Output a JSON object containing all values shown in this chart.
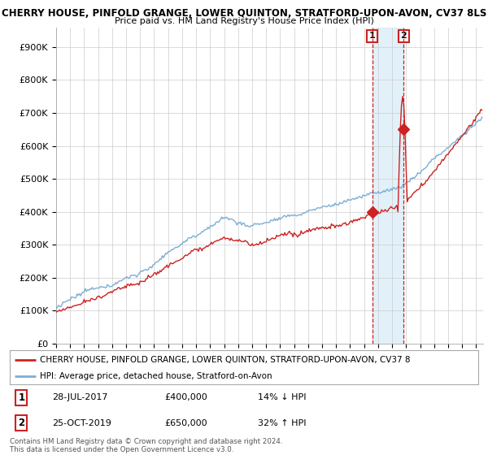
{
  "title": "CHERRY HOUSE, PINFOLD GRANGE, LOWER QUINTON, STRATFORD-UPON-AVON, CV37 8LS",
  "subtitle": "Price paid vs. HM Land Registry's House Price Index (HPI)",
  "ylabel_ticks": [
    "£0",
    "£100K",
    "£200K",
    "£300K",
    "£400K",
    "£500K",
    "£600K",
    "£700K",
    "£800K",
    "£900K"
  ],
  "ytick_vals": [
    0,
    100000,
    200000,
    300000,
    400000,
    500000,
    600000,
    700000,
    800000,
    900000
  ],
  "ylim": [
    0,
    960000
  ],
  "xlim_start": 1995.3,
  "xlim_end": 2025.5,
  "hpi_color": "#7daed4",
  "price_color": "#cc2222",
  "marker_color": "#cc2222",
  "shade_color": "#d0e8f5",
  "sale1_year": 2017.57,
  "sale1_price": 400000,
  "sale2_year": 2019.82,
  "sale2_price": 650000,
  "sale1_label": "1",
  "sale2_label": "2",
  "legend_label1": "CHERRY HOUSE, PINFOLD GRANGE, LOWER QUINTON, STRATFORD-UPON-AVON, CV37 8",
  "legend_label2": "HPI: Average price, detached house, Stratford-on-Avon",
  "table_row1": [
    "1",
    "28-JUL-2017",
    "£400,000",
    "14% ↓ HPI"
  ],
  "table_row2": [
    "2",
    "25-OCT-2019",
    "£650,000",
    "32% ↑ HPI"
  ],
  "footer": "Contains HM Land Registry data © Crown copyright and database right 2024.\nThis data is licensed under the Open Government Licence v3.0.",
  "bg_color": "#ffffff",
  "grid_color": "#cccccc",
  "hpi_linewidth": 1.0,
  "price_linewidth": 1.0
}
